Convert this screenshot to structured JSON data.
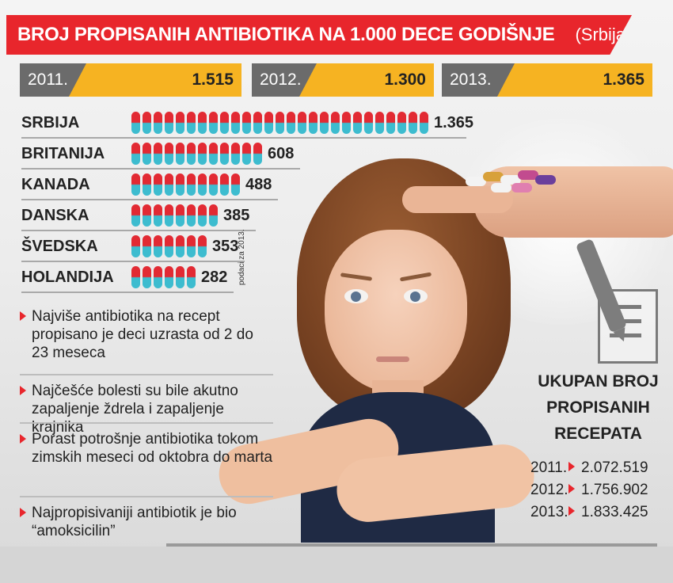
{
  "header": {
    "title": "BROJ PROPISANIH ANTIBIOTIKA NA 1.000 DECE GODIŠNJE",
    "subtitle": "(Srbija)"
  },
  "yearly": [
    {
      "year": "2011.",
      "value": "1.515"
    },
    {
      "year": "2012.",
      "value": "1.300"
    },
    {
      "year": "2013.",
      "value": "1.365"
    }
  ],
  "chart_data": {
    "type": "bar",
    "categories": [
      "SRBIJA",
      "BRITANIJA",
      "KANADA",
      "DANSKA",
      "ŠVEDSKA",
      "HOLANDIJA"
    ],
    "values": [
      1365,
      608,
      488,
      385,
      353,
      282
    ],
    "value_labels": [
      "1.365",
      "608",
      "488",
      "385",
      "353",
      "282"
    ],
    "note": "podaci za 2013.",
    "marker": "pill",
    "colors": {
      "top": "#e22a33",
      "bottom": "#3dbccf"
    }
  },
  "bullets": [
    "Najviše antibiotika na recept propisano je deci uzrasta od 2 do 23 meseca",
    "Najčešće bolesti su bile akutno zapaljenje ždrela i zapaljenje krajnika",
    "Porast potrošnje antibiotika tokom zimskih meseci od oktobra do marta",
    "Najpropisivaniji antibiotik je bio “amoksicilin”"
  ],
  "totals": {
    "title_lines": [
      "UKUPAN BROJ",
      "PROPISANIH",
      "RECEPATA"
    ],
    "rows": [
      {
        "year": "2011.",
        "value": "2.072.519"
      },
      {
        "year": "2012.",
        "value": "1.756.902"
      },
      {
        "year": "2013.",
        "value": "1.833.425"
      }
    ]
  },
  "icons": {
    "prescription": "pen-paper-icon",
    "hand": "hand-pills-icon",
    "photo": "girl-photo"
  },
  "colors": {
    "accent_red": "#e8262c",
    "accent_yellow": "#f6b322",
    "dark_grey": "#6b6b6b"
  }
}
